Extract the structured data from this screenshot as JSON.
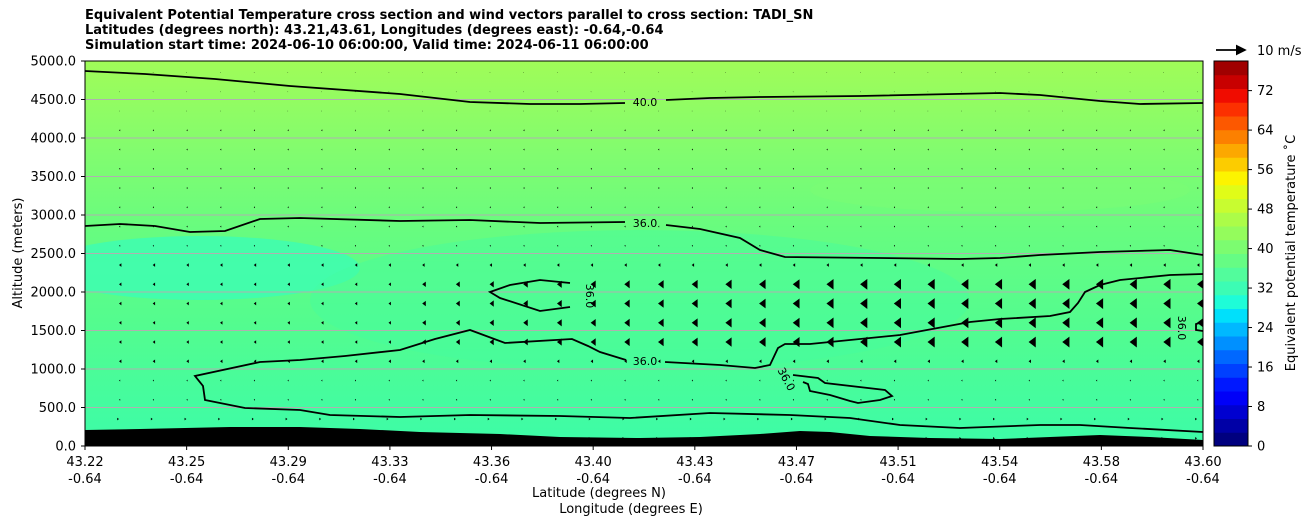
{
  "chart_data": {
    "type": "contour",
    "title_lines": [
      "Equivalent Potential Temperature cross section and wind vectors parallel to cross section: TADI_SN",
      "Latitudes (degrees north): 43.21,43.61, Longitudes (degrees east): -0.64,-0.64",
      "Simulation start time: 2024-06-10 06:00:00, Valid time: 2024-06-11 06:00:00"
    ],
    "xlabel": "Latitude (degrees N)",
    "xlabel2": "Longitude (degrees E)",
    "ylabel": "Altitude (meters)",
    "x_ticks": [
      {
        "lat": "43.22",
        "lon": "-0.64"
      },
      {
        "lat": "43.25",
        "lon": "-0.64"
      },
      {
        "lat": "43.29",
        "lon": "-0.64"
      },
      {
        "lat": "43.33",
        "lon": "-0.64"
      },
      {
        "lat": "43.36",
        "lon": "-0.64"
      },
      {
        "lat": "43.40",
        "lon": "-0.64"
      },
      {
        "lat": "43.43",
        "lon": "-0.64"
      },
      {
        "lat": "43.47",
        "lon": "-0.64"
      },
      {
        "lat": "43.51",
        "lon": "-0.64"
      },
      {
        "lat": "43.54",
        "lon": "-0.64"
      },
      {
        "lat": "43.58",
        "lon": "-0.64"
      },
      {
        "lat": "43.60",
        "lon": "-0.64"
      }
    ],
    "y_ticks": [
      "0.0",
      "500.0",
      "1000.0",
      "1500.0",
      "2000.0",
      "2500.0",
      "3000.0",
      "3500.0",
      "4000.0",
      "4500.0",
      "5000.0"
    ],
    "ylim": [
      0,
      5000
    ],
    "grid": "horizontal",
    "colorbar": {
      "label": "Equivalent potential temperature $^\\circ$C",
      "ticks": [
        "0",
        "8",
        "16",
        "24",
        "32",
        "40",
        "48",
        "56",
        "64",
        "72"
      ],
      "range": [
        0,
        78
      ]
    },
    "contour_labels": [
      {
        "text": "40.0",
        "index": 4.75,
        "alt": 4450
      },
      {
        "text": "36.0",
        "index": 4.75,
        "alt": 2900
      },
      {
        "text": "36.0",
        "index": 4.75,
        "alt": 1090
      },
      {
        "text": "36.0",
        "index": 6.5,
        "alt": 870
      },
      {
        "text": "36.0",
        "index": 4.8,
        "alt": 1930
      },
      {
        "text": "36.0",
        "index": 10.9,
        "alt": 1530
      }
    ],
    "wind_key": {
      "label": "10 m/s"
    },
    "terrain_color": "#000000"
  }
}
